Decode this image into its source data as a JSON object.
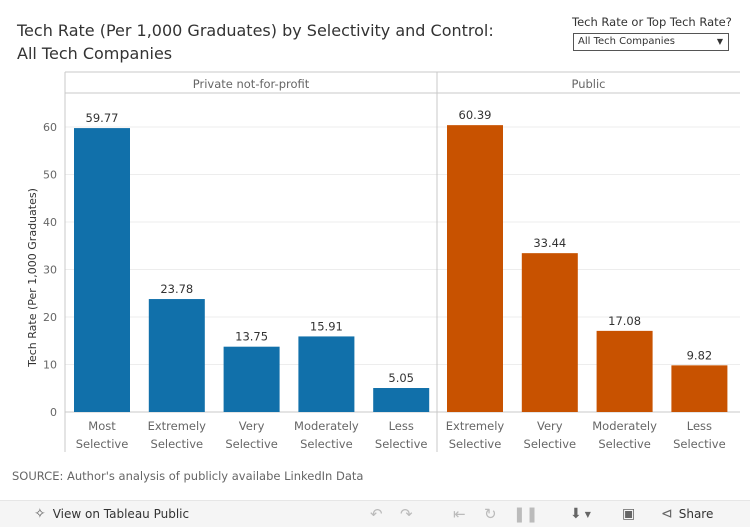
{
  "title": {
    "line1": "Tech Rate (Per 1,000 Graduates) by Selectivity and Control:",
    "line2": "All Tech Companies"
  },
  "filter": {
    "label": "Tech Rate or Top Tech Rate?",
    "selected": "All Tech Companies"
  },
  "source": "SOURCE: Author's analysis of publicly availabe LinkedIn Data",
  "toolbar": {
    "view_label": "View on Tableau Public",
    "share_label": "Share"
  },
  "colors": {
    "private": "#1170aa",
    "public": "#c85200",
    "grid": "#ededed",
    "divider": "#c8c8c8"
  },
  "chart_data": {
    "type": "bar",
    "ylabel": "Tech Rate (Per 1,000 Graduates)",
    "ylim": [
      0,
      64
    ],
    "yticks": [
      0,
      10,
      20,
      30,
      40,
      50,
      60
    ],
    "panels": [
      {
        "name": "Private not-for-profit",
        "color_key": "private",
        "categories": [
          [
            "Most",
            "Selective"
          ],
          [
            "Extremely",
            "Selective"
          ],
          [
            "Very",
            "Selective"
          ],
          [
            "Moderately",
            "Selective"
          ],
          [
            "Less",
            "Selective"
          ]
        ],
        "values": [
          59.77,
          23.78,
          13.75,
          15.91,
          5.05
        ],
        "labels": [
          "59.77",
          "23.78",
          "13.75",
          "15.91",
          "5.05"
        ]
      },
      {
        "name": "Public",
        "color_key": "public",
        "categories": [
          [
            "Extremely",
            "Selective"
          ],
          [
            "Very",
            "Selective"
          ],
          [
            "Moderately",
            "Selective"
          ],
          [
            "Less",
            "Selective"
          ]
        ],
        "values": [
          60.39,
          33.44,
          17.08,
          9.82
        ],
        "labels": [
          "60.39",
          "33.44",
          "17.08",
          "9.82"
        ]
      }
    ]
  }
}
